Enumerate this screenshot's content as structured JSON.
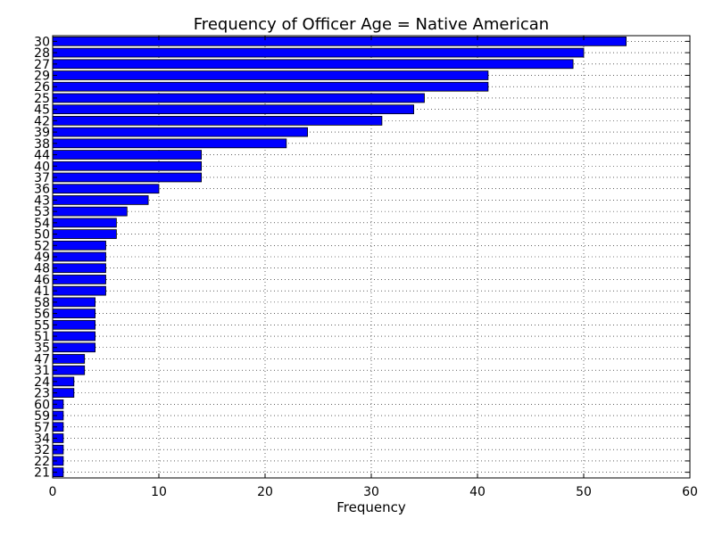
{
  "chart_data": {
    "type": "bar",
    "orientation": "horizontal",
    "title": "Frequency of Officer Age = Native American",
    "xlabel": "Frequency",
    "ylabel": "",
    "xlim": [
      0,
      60
    ],
    "x_ticks": [
      0,
      10,
      20,
      30,
      40,
      50,
      60
    ],
    "grid": true,
    "bar_color": "#0000ff",
    "categories": [
      "30",
      "28",
      "27",
      "29",
      "26",
      "25",
      "45",
      "42",
      "39",
      "38",
      "44",
      "40",
      "37",
      "36",
      "43",
      "53",
      "54",
      "50",
      "52",
      "49",
      "48",
      "46",
      "41",
      "58",
      "56",
      "55",
      "51",
      "35",
      "47",
      "31",
      "24",
      "23",
      "60",
      "59",
      "57",
      "34",
      "32",
      "22",
      "21"
    ],
    "values": [
      54,
      50,
      49,
      41,
      41,
      35,
      34,
      31,
      24,
      22,
      14,
      14,
      14,
      10,
      9,
      7,
      6,
      6,
      5,
      5,
      5,
      5,
      5,
      4,
      4,
      4,
      4,
      4,
      3,
      3,
      2,
      2,
      1,
      1,
      1,
      1,
      1,
      1,
      1
    ]
  }
}
